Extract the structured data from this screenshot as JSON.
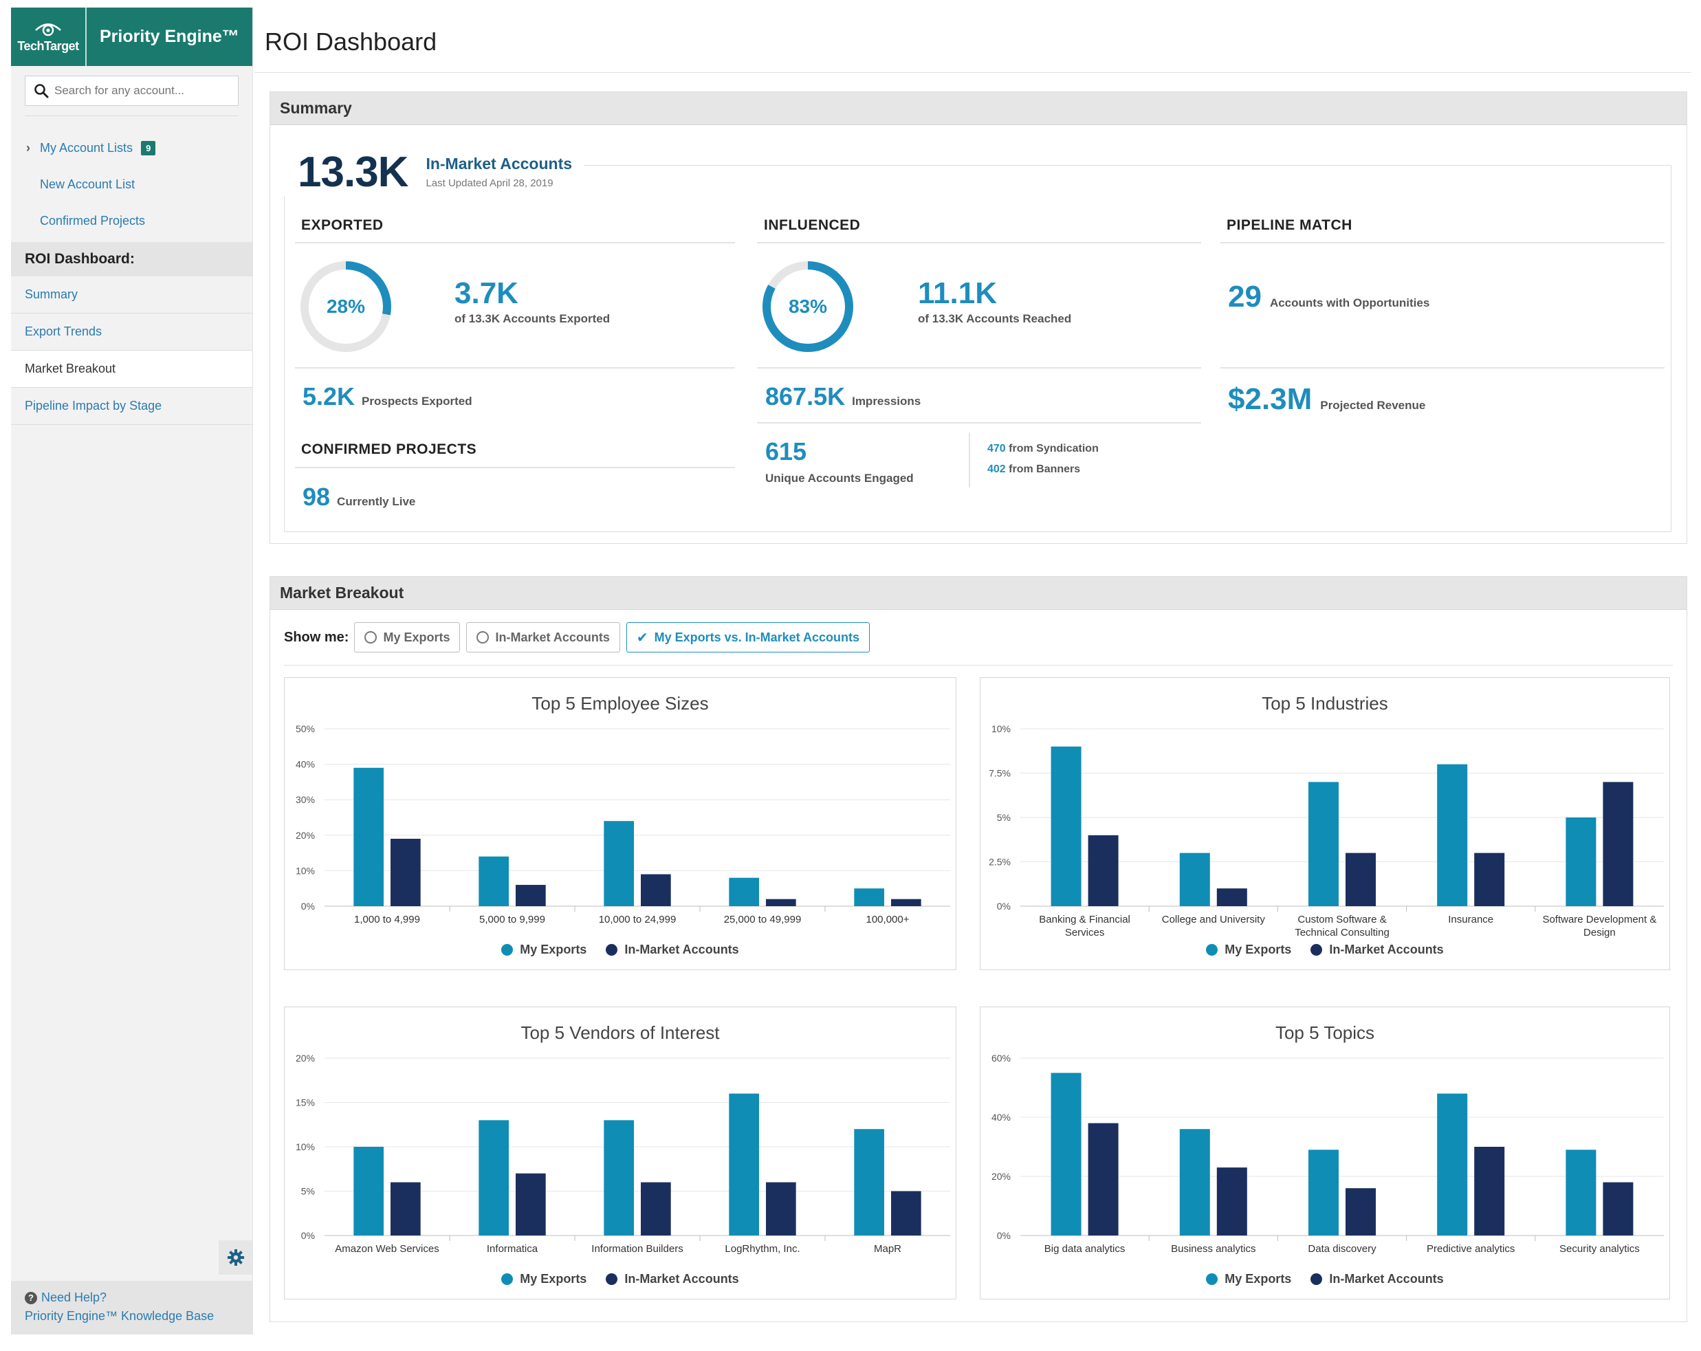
{
  "brand": {
    "company": "TechTarget",
    "product": "Priority Engine™"
  },
  "search": {
    "placeholder": "Search for any account..."
  },
  "account_lists": {
    "label": "My Account Lists",
    "badge": "9",
    "new_list": "New Account List",
    "confirmed": "Confirmed Projects"
  },
  "roi_nav": {
    "heading": "ROI Dashboard:",
    "items": [
      {
        "label": "Summary"
      },
      {
        "label": "Export Trends"
      },
      {
        "label": "Market Breakout"
      },
      {
        "label": "Pipeline Impact by Stage"
      }
    ]
  },
  "help": {
    "question": "Need Help?",
    "kb": "Priority Engine™ Knowledge Base"
  },
  "page": {
    "title": "ROI Dashboard"
  },
  "summary": {
    "heading": "Summary",
    "hero": {
      "value": "13.3K",
      "label": "In-Market Accounts",
      "updated": "Last Updated April 28, 2019"
    },
    "exported": {
      "title": "EXPORTED",
      "percent": 28,
      "percent_label": "28%",
      "value": "3.7K",
      "caption": "of 13.3K Accounts Exported",
      "prospects_value": "5.2K",
      "prospects_label": "Prospects Exported"
    },
    "confirmed": {
      "title": "CONFIRMED PROJECTS",
      "value": "98",
      "label": "Currently Live"
    },
    "influenced": {
      "title": "INFLUENCED",
      "percent": 83,
      "percent_label": "83%",
      "value": "11.1K",
      "caption": "of 13.3K Accounts Reached",
      "impressions_value": "867.5K",
      "impressions_label": "Impressions",
      "engaged_value": "615",
      "engaged_label": "Unique Accounts Engaged",
      "syndication_value": "470",
      "syndication_label": "from Syndication",
      "banners_value": "402",
      "banners_label": "from Banners"
    },
    "pipeline": {
      "title": "PIPELINE MATCH",
      "accounts_value": "29",
      "accounts_label": "Accounts with Opportunities",
      "revenue_value": "$2.3M",
      "revenue_label": "Projected Revenue"
    }
  },
  "market": {
    "heading": "Market Breakout",
    "show_me": "Show me:",
    "options": {
      "exports": "My Exports",
      "in_market": "In-Market Accounts",
      "versus": "My Exports vs. In-Market Accounts"
    },
    "legend": {
      "exports": "My Exports",
      "in_market": "In-Market Accounts"
    }
  },
  "colors": {
    "exports": "#0f8db5",
    "in_market": "#1b2f5e",
    "accent": "#1e8dbd",
    "brand": "#1a7a6e"
  },
  "chart_data": [
    {
      "type": "bar",
      "title": "Top 5 Employee Sizes",
      "categories": [
        "1,000 to 4,999",
        "5,000 to 9,999",
        "10,000 to 24,999",
        "25,000 to 49,999",
        "100,000+"
      ],
      "series": [
        {
          "name": "My Exports",
          "values": [
            39,
            14,
            24,
            8,
            5
          ]
        },
        {
          "name": "In-Market Accounts",
          "values": [
            19,
            6,
            9,
            2,
            2
          ]
        }
      ],
      "ylim": [
        0,
        50
      ],
      "yticks": [
        0,
        10,
        20,
        30,
        40,
        50
      ],
      "ytick_labels": [
        "0%",
        "10%",
        "20%",
        "30%",
        "40%",
        "50%"
      ]
    },
    {
      "type": "bar",
      "title": "Top 5 Industries",
      "categories": [
        "Banking & Financial Services",
        "College and University",
        "Custom Software & Technical Consulting",
        "Insurance",
        "Software Development & Design"
      ],
      "series": [
        {
          "name": "My Exports",
          "values": [
            9,
            3,
            7,
            8,
            5
          ]
        },
        {
          "name": "In-Market Accounts",
          "values": [
            4,
            1,
            3,
            3,
            7
          ]
        }
      ],
      "ylim": [
        0,
        10
      ],
      "yticks": [
        0,
        2.5,
        5,
        7.5,
        10
      ],
      "ytick_labels": [
        "0%",
        "2.5%",
        "5%",
        "7.5%",
        "10%"
      ]
    },
    {
      "type": "bar",
      "title": "Top 5 Vendors of Interest",
      "categories": [
        "Amazon Web Services",
        "Informatica",
        "Information Builders",
        "LogRhythm, Inc.",
        "MapR"
      ],
      "series": [
        {
          "name": "My Exports",
          "values": [
            10,
            13,
            13,
            16,
            12
          ]
        },
        {
          "name": "In-Market Accounts",
          "values": [
            6,
            7,
            6,
            6,
            5
          ]
        }
      ],
      "ylim": [
        0,
        20
      ],
      "yticks": [
        0,
        5,
        10,
        15,
        20
      ],
      "ytick_labels": [
        "0%",
        "5%",
        "10%",
        "15%",
        "20%"
      ]
    },
    {
      "type": "bar",
      "title": "Top 5 Topics",
      "categories": [
        "Big data analytics",
        "Business analytics",
        "Data discovery",
        "Predictive analytics",
        "Security analytics"
      ],
      "series": [
        {
          "name": "My Exports",
          "values": [
            55,
            36,
            29,
            48,
            29
          ]
        },
        {
          "name": "In-Market Accounts",
          "values": [
            38,
            23,
            16,
            30,
            18
          ]
        }
      ],
      "ylim": [
        0,
        60
      ],
      "yticks": [
        0,
        20,
        40,
        60
      ],
      "ytick_labels": [
        "0%",
        "20%",
        "40%",
        "60%"
      ]
    }
  ]
}
